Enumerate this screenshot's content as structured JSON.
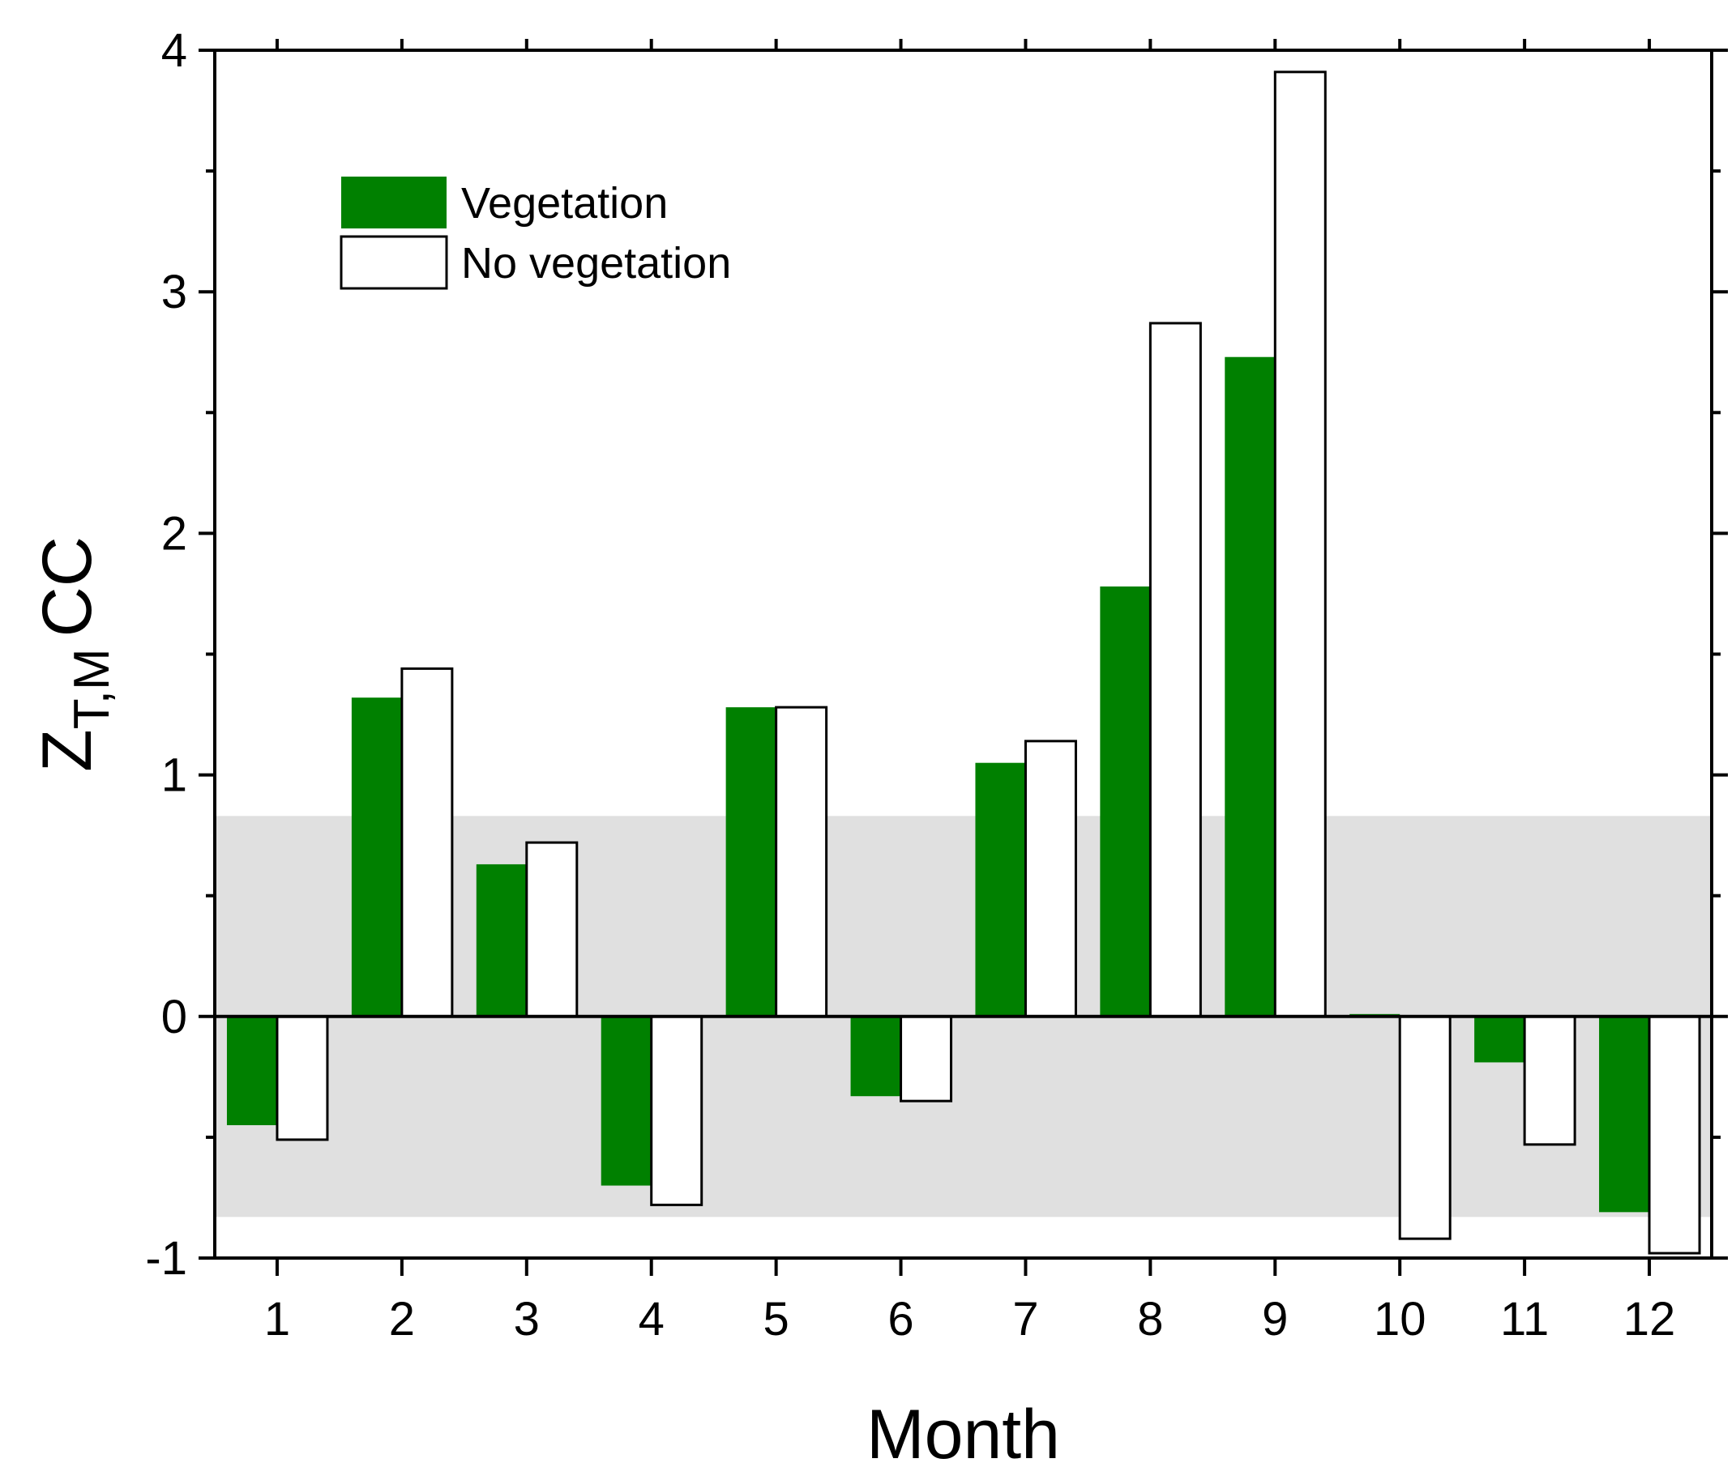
{
  "chart_data": {
    "type": "bar",
    "title": "",
    "xlabel": "Month",
    "ylabel": {
      "main": "Z",
      "subscript": "T,M",
      "suffix": "CC"
    },
    "categories": [
      "1",
      "2",
      "3",
      "4",
      "5",
      "6",
      "7",
      "8",
      "9",
      "10",
      "11",
      "12"
    ],
    "series": [
      {
        "name": "Vegetation",
        "color": "#008000",
        "edge": "none",
        "values": [
          -0.45,
          1.32,
          0.63,
          -0.7,
          1.28,
          -0.33,
          1.05,
          1.78,
          2.73,
          0.01,
          -0.19,
          -0.81
        ]
      },
      {
        "name": "No vegetation",
        "color": "#ffffff",
        "edge": "#000000",
        "values": [
          -0.51,
          1.44,
          0.72,
          -0.78,
          1.28,
          -0.35,
          1.14,
          2.87,
          3.91,
          -0.92,
          -0.53,
          -0.98
        ]
      }
    ],
    "ylim": [
      -1,
      4
    ],
    "yticks": [
      "-1",
      "0",
      "1",
      "2",
      "3",
      "4"
    ],
    "significance_band": {
      "lower": -0.83,
      "upper": 0.83,
      "color": "#e0e0e0"
    },
    "legend_position": "top-left",
    "grid": false
  }
}
